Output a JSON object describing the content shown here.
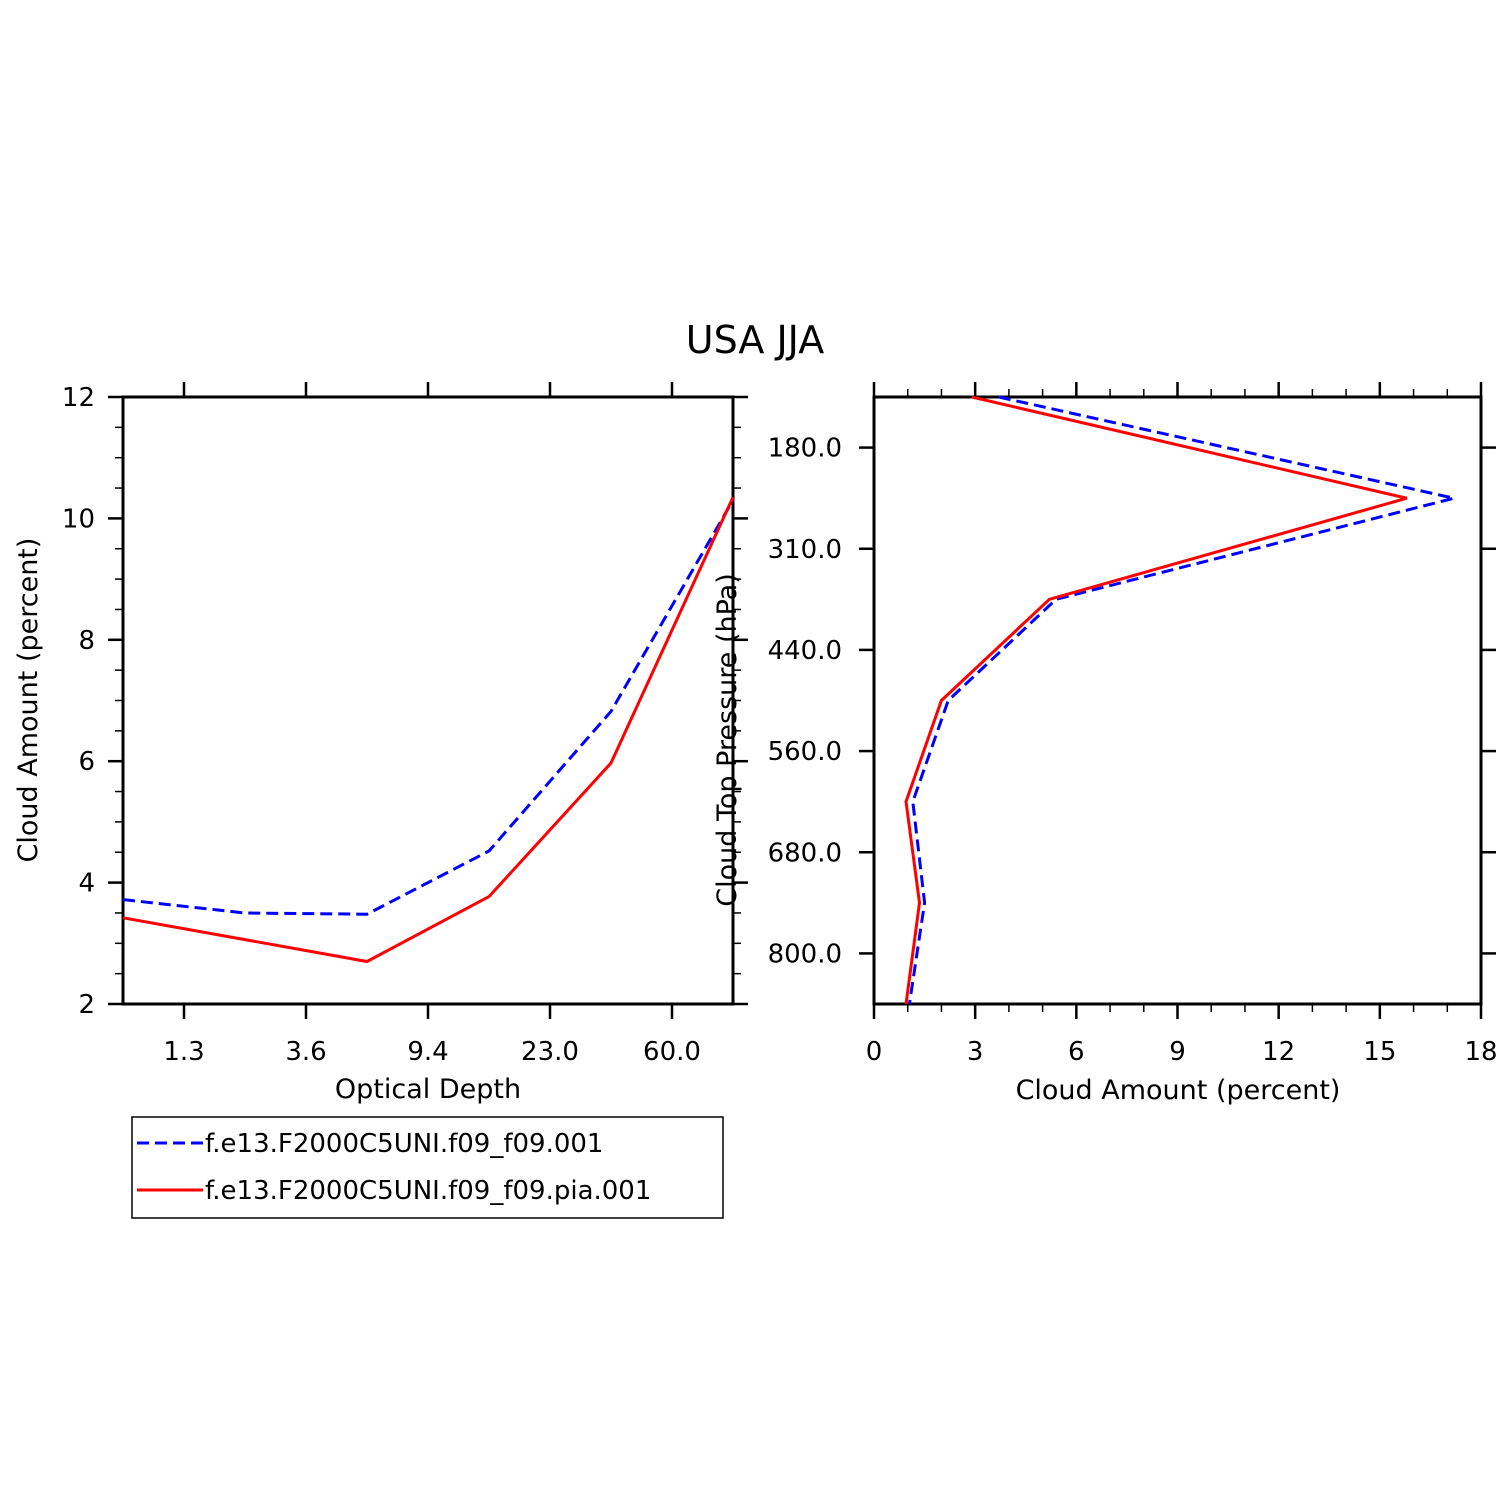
{
  "title": "USA JJA",
  "colors": {
    "series1": "#0000ff",
    "series2": "#ff0000",
    "axis": "#000000"
  },
  "chart_data": [
    {
      "type": "line",
      "xlabel": "Optical Depth",
      "ylabel": "Cloud Amount (percent)",
      "x_tick_labels": [
        "1.3",
        "3.6",
        "9.4",
        "23.0",
        "60.0"
      ],
      "y_ticks": [
        2,
        4,
        6,
        8,
        10,
        12
      ],
      "ylim": [
        2,
        12
      ],
      "x_bins": 5,
      "grid": false,
      "series": [
        {
          "name": "f.e13.F2000C5UNI.f09_f09.001",
          "style": "dashed",
          "x": [
            0.0,
            1.0,
            2.0,
            3.0,
            4.0,
            5.0
          ],
          "y": [
            3.72,
            3.5,
            3.48,
            4.52,
            6.82,
            10.3
          ]
        },
        {
          "name": "f.e13.F2000C5UNI.f09_f09.pia.001",
          "style": "solid",
          "x": [
            0.0,
            2.0,
            3.0,
            4.0,
            5.0
          ],
          "y": [
            3.42,
            2.7,
            3.77,
            5.97,
            10.35
          ]
        }
      ]
    },
    {
      "type": "line",
      "xlabel": "Cloud Amount (percent)",
      "ylabel": "Cloud Top Pressure (hPa)",
      "x_ticks": [
        0,
        3,
        6,
        9,
        12,
        15,
        18
      ],
      "xlim": [
        0,
        18
      ],
      "y_tick_labels": [
        "180.0",
        "310.0",
        "440.0",
        "560.0",
        "680.0",
        "800.0"
      ],
      "y_bins": 6,
      "grid": false,
      "series": [
        {
          "name": "f.e13.F2000C5UNI.f09_f09.001",
          "style": "dashed",
          "x": [
            3.7,
            17.2,
            5.4,
            2.2,
            1.15,
            1.5,
            1.05
          ],
          "y": [
            0.0,
            1.0,
            2.0,
            3.0,
            4.0,
            5.0,
            6.0
          ]
        },
        {
          "name": "f.e13.F2000C5UNI.f09_f09.pia.001",
          "style": "solid",
          "x": [
            2.9,
            15.8,
            5.2,
            2.0,
            0.95,
            1.35,
            0.95
          ],
          "y": [
            0.0,
            1.0,
            2.0,
            3.0,
            4.0,
            5.0,
            6.0
          ]
        }
      ]
    }
  ],
  "legend": {
    "entries": [
      {
        "label": "f.e13.F2000C5UNI.f09_f09.001",
        "style": "dashed"
      },
      {
        "label": "f.e13.F2000C5UNI.f09_f09.pia.001",
        "style": "solid"
      }
    ]
  }
}
